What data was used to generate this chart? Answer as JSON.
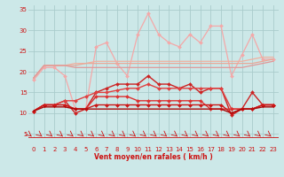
{
  "xlabel": "Vent moyen/en rafales ( km/h )",
  "background_color": "#cce8e8",
  "grid_color": "#aacccc",
  "xlim": [
    -0.5,
    23.5
  ],
  "ylim": [
    4,
    36
  ],
  "yticks": [
    5,
    10,
    15,
    20,
    25,
    30,
    35
  ],
  "xticks": [
    0,
    1,
    2,
    3,
    4,
    5,
    6,
    7,
    8,
    9,
    10,
    11,
    12,
    13,
    14,
    15,
    16,
    17,
    18,
    19,
    20,
    21,
    22,
    23
  ],
  "series": [
    {
      "y": [
        18,
        21,
        21,
        19,
        11,
        11,
        26,
        27,
        22,
        19,
        29,
        34,
        29,
        27,
        26,
        29,
        27,
        31,
        31,
        19,
        24,
        29,
        23,
        23
      ],
      "color": "#f4a8a8",
      "lw": 0.9,
      "marker": "D",
      "ms": 2.0
    },
    {
      "y": [
        18.5,
        21.5,
        21.5,
        21.5,
        22,
        22,
        22.5,
        22.5,
        22.5,
        22.5,
        22.5,
        22.5,
        22.5,
        22.5,
        22.5,
        22.5,
        22.5,
        22.5,
        22.5,
        22.5,
        22.5,
        23,
        23.5,
        23.5
      ],
      "color": "#f0b0a0",
      "lw": 0.9,
      "marker": null,
      "ms": 0
    },
    {
      "y": [
        18.5,
        21.5,
        21.5,
        21.5,
        21.5,
        22,
        22,
        22,
        22,
        22,
        22,
        22,
        22,
        22,
        22,
        22,
        22,
        22,
        22,
        22,
        22,
        22,
        22.5,
        23
      ],
      "color": "#e8a898",
      "lw": 0.9,
      "marker": null,
      "ms": 0
    },
    {
      "y": [
        18.5,
        21.5,
        21.5,
        21.5,
        21,
        21,
        21,
        21,
        21,
        21,
        21,
        21,
        21,
        21,
        21,
        21,
        21,
        21,
        21,
        21,
        21,
        21.5,
        22,
        22.5
      ],
      "color": "#e09898",
      "lw": 0.9,
      "marker": null,
      "ms": 0
    },
    {
      "y": [
        10.5,
        12,
        12,
        13,
        10,
        11,
        15,
        16,
        17,
        17,
        17,
        19,
        17,
        17,
        16,
        17,
        15,
        16,
        16,
        9.5,
        11,
        15,
        12,
        12
      ],
      "color": "#cc2222",
      "lw": 1.0,
      "marker": "D",
      "ms": 2.0
    },
    {
      "y": [
        10.5,
        12,
        12,
        13,
        13,
        14,
        15,
        15,
        15.5,
        16,
        16,
        17,
        16,
        16,
        16,
        16,
        16,
        16,
        16,
        11,
        11,
        11,
        12,
        12
      ],
      "color": "#e04040",
      "lw": 1.0,
      "marker": "D",
      "ms": 2.0
    },
    {
      "y": [
        10.5,
        12,
        12,
        12,
        11,
        11,
        14,
        14,
        14,
        14,
        13,
        13,
        13,
        13,
        13,
        13,
        13,
        11,
        11,
        11,
        11,
        11,
        12,
        12
      ],
      "color": "#dd3030",
      "lw": 1.0,
      "marker": "D",
      "ms": 2.0
    },
    {
      "y": [
        10.5,
        12,
        12,
        12,
        11,
        11,
        12,
        12,
        12,
        12,
        12,
        12,
        12,
        12,
        12,
        12,
        12,
        12,
        12,
        10,
        11,
        11,
        12,
        12
      ],
      "color": "#cc1818",
      "lw": 1.0,
      "marker": "D",
      "ms": 2.0
    },
    {
      "y": [
        10.5,
        11.5,
        11.5,
        11.5,
        11,
        11,
        11,
        11,
        11,
        11,
        11,
        11,
        11,
        11,
        11,
        11,
        11,
        11,
        11,
        10,
        11,
        11,
        11.5,
        11.5
      ],
      "color": "#aa0808",
      "lw": 1.0,
      "marker": null,
      "ms": 0
    }
  ]
}
